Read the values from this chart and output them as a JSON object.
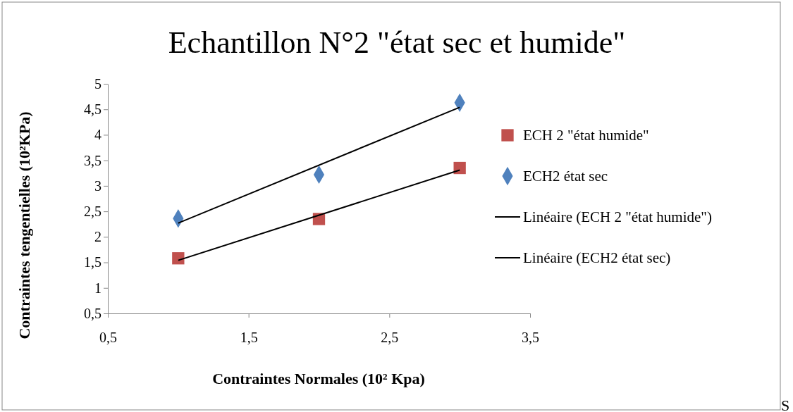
{
  "chart_data": {
    "type": "scatter",
    "title": "Echantillon N°2 \"état sec et humide\"",
    "xlabel": "Contraintes Normales (10² Kpa)",
    "ylabel": "Contraintes tengentielles (10²KPa)",
    "xlim": [
      0.5,
      3.5
    ],
    "xticks": [
      {
        "value": 0.5,
        "label": "0,5"
      },
      {
        "value": 1.5,
        "label": "1,5"
      },
      {
        "value": 2.5,
        "label": "2,5"
      },
      {
        "value": 3.5,
        "label": "3,5"
      }
    ],
    "ylim": [
      0.5,
      5
    ],
    "yticks": [
      {
        "value": 0.5,
        "label": "0,5"
      },
      1,
      {
        "value": 1.5,
        "label": "1,5"
      },
      2,
      {
        "value": 2.5,
        "label": "2,5"
      },
      3,
      {
        "value": 3.5,
        "label": "3,5"
      },
      4,
      {
        "value": 4.5,
        "label": "4,5"
      },
      5
    ],
    "grid": false,
    "legend": "right",
    "series": [
      {
        "name": "ECH 2 \"état humide\"",
        "marker": "square",
        "color": "#c0504d",
        "x": [
          1,
          2,
          3
        ],
        "values": [
          1.58,
          2.35,
          3.35
        ]
      },
      {
        "name": "ECH2 état sec",
        "marker": "diamond",
        "color": "#4f81bd",
        "x": [
          1,
          2,
          3
        ],
        "values": [
          2.36,
          3.22,
          4.63
        ]
      },
      {
        "name": "Linéaire (ECH 2 \"état humide\")",
        "type": "line",
        "marker": "none",
        "line_style": "solid",
        "color": "#000000",
        "x": [
          1,
          3
        ],
        "values": [
          1.54,
          3.31
        ]
      },
      {
        "name": "Linéaire (ECH2 état sec)",
        "type": "line",
        "marker": "none",
        "line_style": "solid",
        "color": "#000000",
        "x": [
          1,
          3
        ],
        "values": [
          2.27,
          4.54
        ]
      }
    ],
    "annotations": [
      "S"
    ]
  }
}
